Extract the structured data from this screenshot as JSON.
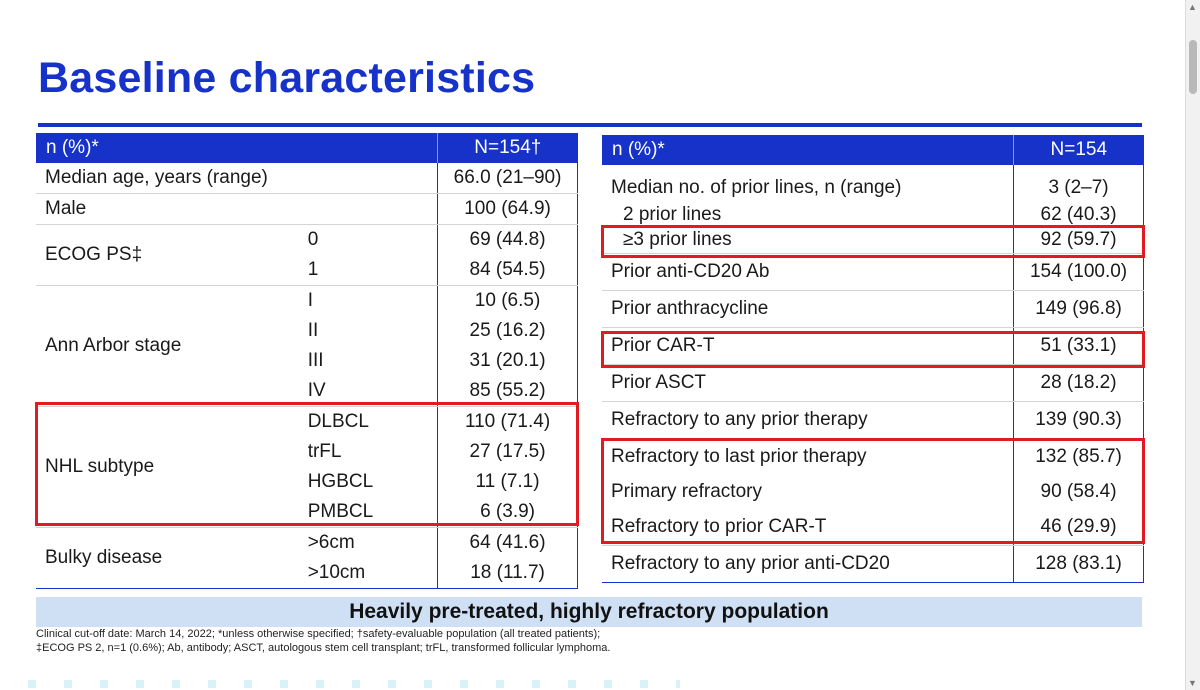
{
  "slide": {
    "title": "Baseline characteristics",
    "banner": "Heavily pre-treated, highly refractory population",
    "footnotes": [
      "Clinical cut-off date: March 14, 2022; *unless otherwise specified; †safety-evaluable population (all treated patients);",
      "‡ECOG PS 2, n=1 (0.6%); Ab, antibody; ASCT, autologous stem cell transplant; trFL, transformed follicular lymphoma."
    ]
  },
  "left_table": {
    "header_label": "n (%)*",
    "header_n": "N=154†",
    "median_age": {
      "label": "Median age, years (range)",
      "value": "66.0 (21–90)"
    },
    "male": {
      "label": "Male",
      "value": "100 (64.9)"
    },
    "ecog": {
      "label": "ECOG PS‡",
      "rows": [
        {
          "sub": "0",
          "value": "69 (44.8)"
        },
        {
          "sub": "1",
          "value": "84 (54.5)"
        }
      ]
    },
    "ann_arbor": {
      "label": "Ann Arbor stage",
      "rows": [
        {
          "sub": "I",
          "value": "10 (6.5)"
        },
        {
          "sub": "II",
          "value": "25 (16.2)"
        },
        {
          "sub": "III",
          "value": "31 (20.1)"
        },
        {
          "sub": "IV",
          "value": "85 (55.2)"
        }
      ]
    },
    "nhl": {
      "label": "NHL subtype",
      "rows": [
        {
          "sub": "DLBCL",
          "value": "110 (71.4)"
        },
        {
          "sub": "trFL",
          "value": "27 (17.5)"
        },
        {
          "sub": "HGBCL",
          "value": "11 (7.1)"
        },
        {
          "sub": "PMBCL",
          "value": "6 (3.9)"
        }
      ]
    },
    "bulky": {
      "label": "Bulky disease",
      "rows": [
        {
          "sub": ">6cm",
          "value": "64 (41.6)"
        },
        {
          "sub": ">10cm",
          "value": "18 (11.7)"
        }
      ]
    }
  },
  "right_table": {
    "header_label": "n (%)*",
    "header_n": "N=154",
    "rows": [
      {
        "label": "Median no. of prior lines, n (range)",
        "value": "3 (2–7)"
      },
      {
        "label": "2 prior lines",
        "value": "62 (40.3)"
      },
      {
        "label": "≥3 prior lines",
        "value": "92 (59.7)"
      },
      {
        "label": "Prior anti-CD20 Ab",
        "value": "154 (100.0)"
      },
      {
        "label": "Prior anthracycline",
        "value": "149 (96.8)"
      },
      {
        "label": "Prior CAR-T",
        "value": "51 (33.1)"
      },
      {
        "label": "Prior ASCT",
        "value": "28 (18.2)"
      },
      {
        "label": "Refractory to any prior therapy",
        "value": "139 (90.3)"
      },
      {
        "label": "Refractory to last prior therapy",
        "value": "132 (85.7)"
      },
      {
        "label": "Primary refractory",
        "value": "90 (58.4)"
      },
      {
        "label": "Refractory to prior CAR-T",
        "value": "46 (29.9)"
      },
      {
        "label": "Refractory to any prior anti-CD20",
        "value": "128 (83.1)"
      }
    ]
  },
  "colors": {
    "accent": "#1632c8",
    "highlight": "#e21b23",
    "banner_bg": "#cfe0f5"
  }
}
